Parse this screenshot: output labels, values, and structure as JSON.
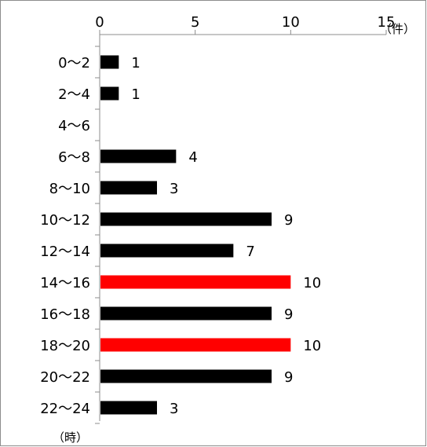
{
  "chart_data": {
    "type": "bar",
    "orientation": "horizontal",
    "categories": [
      "0〜2",
      "2〜4",
      "4〜6",
      "6〜8",
      "8〜10",
      "10〜12",
      "12〜14",
      "14〜16",
      "16〜18",
      "18〜20",
      "20〜22",
      "22〜24"
    ],
    "values": [
      1,
      1,
      0,
      4,
      3,
      9,
      7,
      10,
      9,
      10,
      9,
      3
    ],
    "value_labels": [
      "1",
      "1",
      "",
      "4",
      "3",
      "9",
      "7",
      "10",
      "9",
      "10",
      "9",
      "3"
    ],
    "highlight_indices": [
      7,
      9
    ],
    "xlim": [
      0,
      15
    ],
    "xticks": [
      0,
      5,
      10,
      15
    ],
    "xtick_labels": [
      "0",
      "5",
      "10",
      "15"
    ],
    "x_axis_position": "top",
    "x_unit_label": "（件）",
    "y_unit_label": "（時）",
    "grid": false,
    "legend": "none",
    "colors": {
      "bar": "#000000",
      "highlight": "#ff0000",
      "axis": "#8c8c8c"
    }
  }
}
